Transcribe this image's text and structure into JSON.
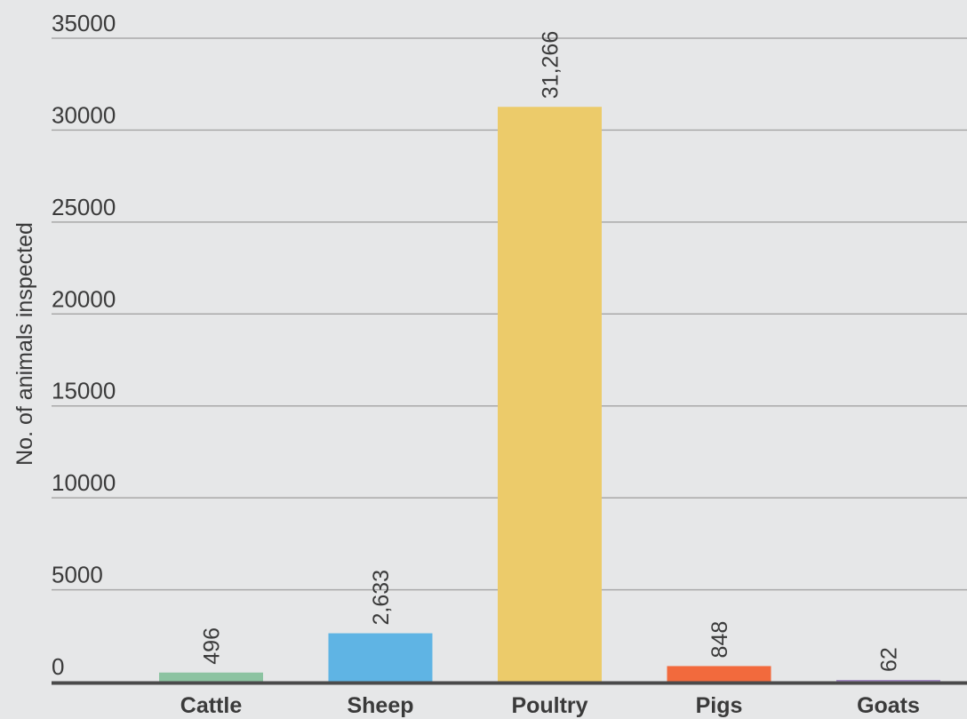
{
  "chart_data": {
    "type": "bar",
    "title": "",
    "xlabel": "",
    "ylabel": "No. of animals inspected",
    "categories": [
      "Cattle",
      "Sheep",
      "Poultry",
      "Pigs",
      "Goats"
    ],
    "values": [
      496,
      2633,
      31266,
      848,
      62
    ],
    "value_labels": [
      "496",
      "2,633",
      "31,266",
      "848",
      "62"
    ],
    "colors": [
      "#8cc3a1",
      "#5fb4e4",
      "#eccb6a",
      "#f26a3d",
      "#a68cc6"
    ],
    "ylim": [
      0,
      35000
    ],
    "yticks": [
      0,
      5000,
      10000,
      15000,
      20000,
      25000,
      30000,
      35000
    ],
    "ytick_labels": [
      "0",
      "5000",
      "10000",
      "15000",
      "20000",
      "25000",
      "30000",
      "35000"
    ],
    "grid": true,
    "legend": "none",
    "background_color": "#e6e7e8",
    "grid_color": "#a9a9a9",
    "baseline_color": "#4a4a4a"
  }
}
